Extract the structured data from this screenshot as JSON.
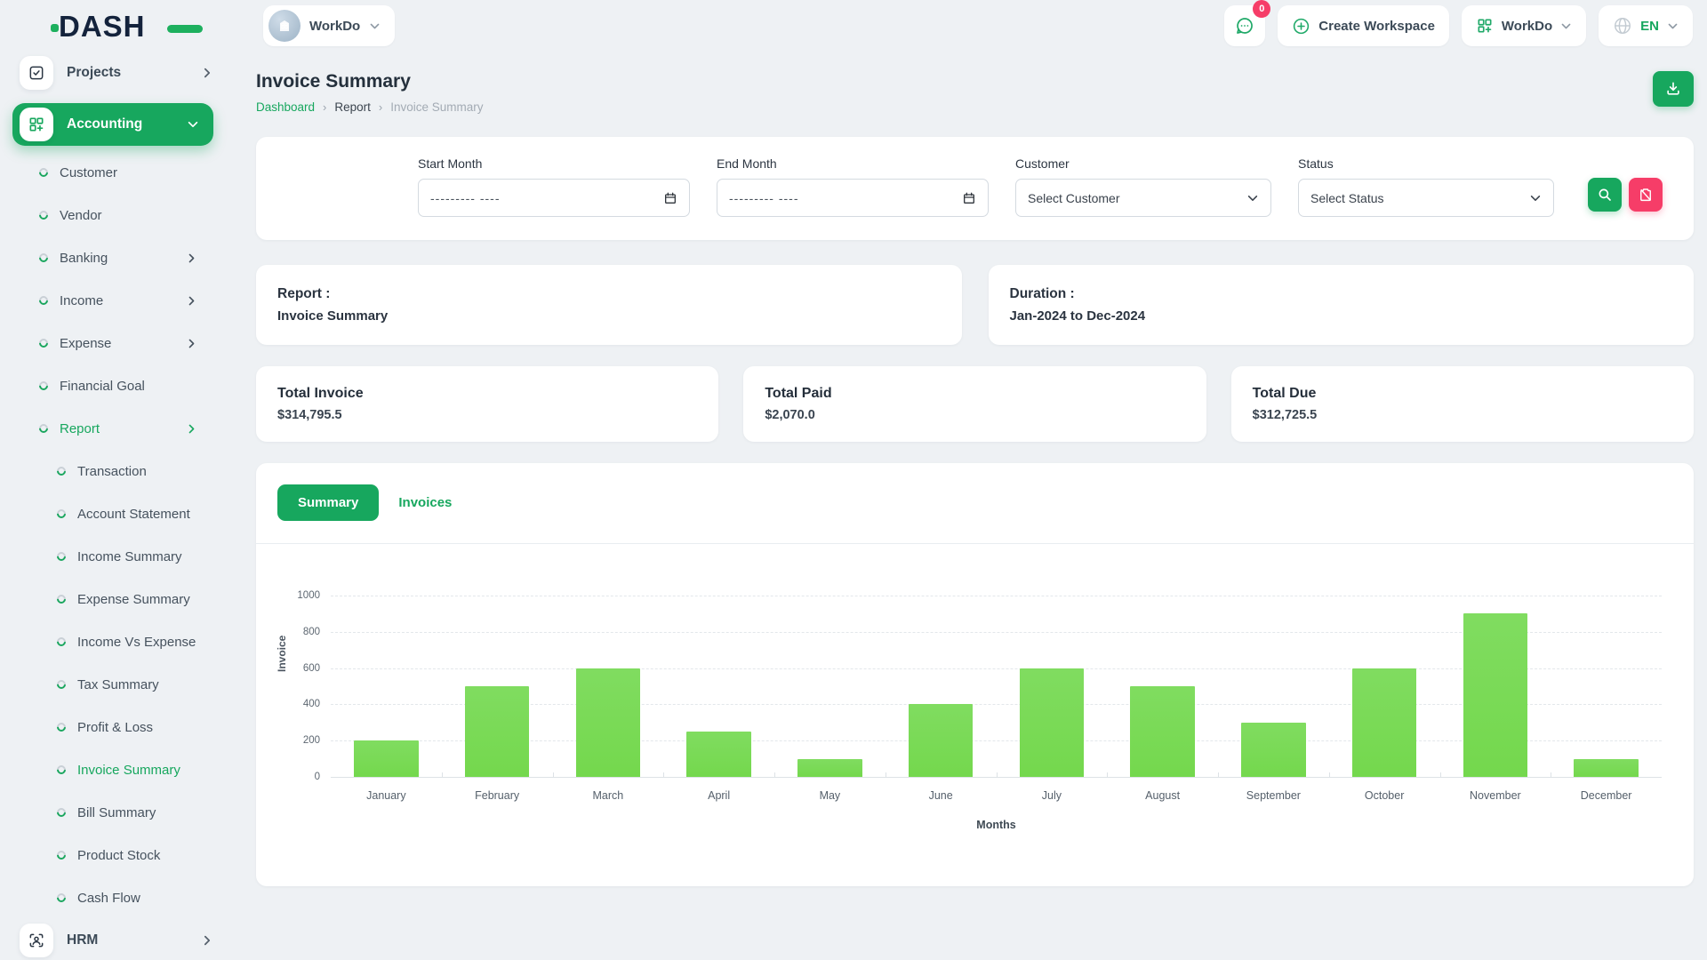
{
  "app": {
    "logo_text": "DASH",
    "accent_green": "#17a75e",
    "bar_green": "#77d94f",
    "pink": "#f63d68"
  },
  "header": {
    "workspace_switcher_label": "WorkDo",
    "chat_badge_count": "0",
    "create_workspace_label": "Create Workspace",
    "workdo_menu_label": "WorkDo",
    "language": "EN"
  },
  "sidebar": {
    "projects_label": "Projects",
    "accounting_label": "Accounting",
    "hrm_label": "HRM",
    "items": [
      {
        "label": "Customer"
      },
      {
        "label": "Vendor"
      },
      {
        "label": "Banking",
        "chevron": true
      },
      {
        "label": "Income",
        "chevron": true
      },
      {
        "label": "Expense",
        "chevron": true
      },
      {
        "label": "Financial Goal"
      },
      {
        "label": "Report",
        "chevron": true,
        "active": true
      },
      {
        "label": "Transaction",
        "indent": true
      },
      {
        "label": "Account Statement",
        "indent": true
      },
      {
        "label": "Income Summary",
        "indent": true
      },
      {
        "label": "Expense Summary",
        "indent": true
      },
      {
        "label": "Income Vs Expense",
        "indent": true
      },
      {
        "label": "Tax Summary",
        "indent": true
      },
      {
        "label": "Profit & Loss",
        "indent": true
      },
      {
        "label": "Invoice Summary",
        "indent": true,
        "active": true
      },
      {
        "label": "Bill Summary",
        "indent": true
      },
      {
        "label": "Product Stock",
        "indent": true
      },
      {
        "label": "Cash Flow",
        "indent": true
      }
    ]
  },
  "page": {
    "title": "Invoice Summary",
    "breadcrumb": [
      "Dashboard",
      "Report",
      "Invoice Summary"
    ]
  },
  "filters": {
    "start_month_label": "Start Month",
    "end_month_label": "End Month",
    "month_placeholder": "--------- ----",
    "customer_label": "Customer",
    "customer_value": "Select Customer",
    "status_label": "Status",
    "status_value": "Select Status"
  },
  "report_card": {
    "label": "Report :",
    "value": "Invoice Summary"
  },
  "duration_card": {
    "label": "Duration :",
    "value": "Jan-2024 to Dec-2024"
  },
  "totals": [
    {
      "label": "Total Invoice",
      "value": "$314,795.5"
    },
    {
      "label": "Total Paid",
      "value": "$2,070.0"
    },
    {
      "label": "Total Due",
      "value": "$312,725.5"
    }
  ],
  "tabs": {
    "summary": "Summary",
    "invoices": "Invoices"
  },
  "chart_data": {
    "type": "bar",
    "title": "",
    "categories": [
      "January",
      "February",
      "March",
      "April",
      "May",
      "June",
      "July",
      "August",
      "September",
      "October",
      "November",
      "December"
    ],
    "values": [
      200,
      500,
      600,
      250,
      100,
      400,
      600,
      500,
      300,
      600,
      900,
      100
    ],
    "xlabel": "Months",
    "ylabel": "Invoice",
    "ylim": [
      0,
      1000
    ],
    "ytick_step": 200,
    "grid": "dashed-horizontal",
    "legend": "none",
    "bar_color": "#77d94f"
  }
}
